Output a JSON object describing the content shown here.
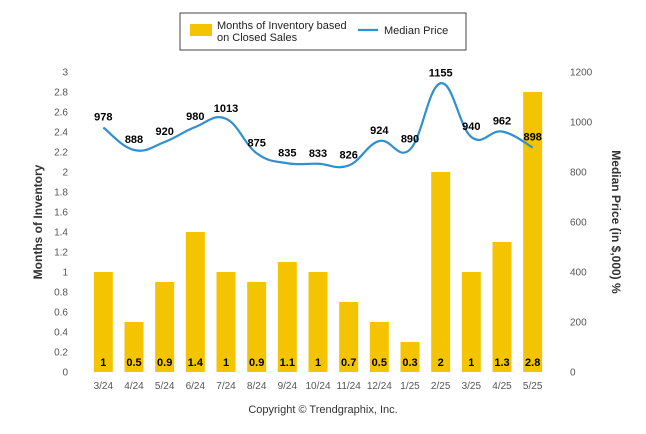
{
  "chart_data": {
    "type": "bar",
    "categories": [
      "3/24",
      "4/24",
      "5/24",
      "6/24",
      "7/24",
      "8/24",
      "9/24",
      "10/24",
      "11/24",
      "12/24",
      "1/25",
      "2/25",
      "3/25",
      "4/25",
      "5/25"
    ],
    "series": [
      {
        "name": "Months of Inventory based on Closed Sales",
        "type": "bar",
        "axis": "left",
        "color": "#F5C400",
        "values": [
          1,
          0.5,
          0.9,
          1.4,
          1,
          0.9,
          1.1,
          1,
          0.7,
          0.5,
          0.3,
          2,
          1,
          1.3,
          2.8
        ],
        "labels": [
          "1",
          "0.5",
          "0.9",
          "1.4",
          "1",
          "0.9",
          "1.1",
          "1",
          "0.7",
          "0.5",
          "0.3",
          "2",
          "1",
          "1.3",
          "2.8"
        ]
      },
      {
        "name": "Median Price",
        "type": "line",
        "axis": "right",
        "color": "#2F8FD0",
        "values": [
          978,
          888,
          920,
          980,
          1013,
          875,
          835,
          833,
          826,
          924,
          890,
          1155,
          940,
          962,
          898
        ],
        "labels": [
          "978",
          "888",
          "920",
          "980",
          "1013",
          "875",
          "835",
          "833",
          "826",
          "924",
          "890",
          "1155",
          "940",
          "962",
          "898"
        ]
      }
    ],
    "legend": {
      "placement": "top-center",
      "items": [
        {
          "label_line1": "Months of Inventory based",
          "label_line2": "on Closed Sales",
          "marker": "bar"
        },
        {
          "label_line1": "Median Price",
          "label_line2": "",
          "marker": "line"
        }
      ]
    },
    "ylabel_left": "Months of Inventory",
    "ylabel_right": "Median Price (in $,000) %",
    "ylim_left": [
      0,
      3
    ],
    "yticks_left": [
      "0",
      "0.2",
      "0.4",
      "0.6",
      "0.8",
      "1",
      "1.2",
      "1.4",
      "1.6",
      "1.8",
      "2",
      "2.2",
      "2.4",
      "2.6",
      "2.8",
      "3"
    ],
    "ylim_right": [
      0,
      1200
    ],
    "yticks_right": [
      "0",
      "200",
      "400",
      "600",
      "800",
      "1000",
      "1200"
    ],
    "grid": false,
    "copyright": "Copyright © Trendgraphix, Inc."
  }
}
